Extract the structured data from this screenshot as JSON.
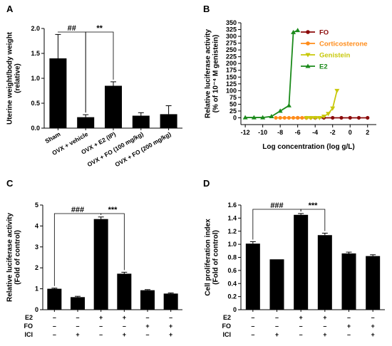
{
  "chart_data": [
    {
      "panel": "A",
      "type": "bar",
      "ylabel": "Uterine weight/body weight\n(relative)",
      "ylim": [
        0,
        2.0
      ],
      "yticks": [
        "0.0",
        "0.5",
        "1.0",
        "1.5",
        "2.0"
      ],
      "categories": [
        "Sham",
        "OVX + vehicle",
        "OVX + E2 (IP)",
        "OVX + FO (100 mg/kg)",
        "OVX + FO (200 mg/kg)"
      ],
      "values": [
        1.4,
        0.22,
        0.85,
        0.25,
        0.28
      ],
      "errors": [
        0.48,
        0.05,
        0.08,
        0.06,
        0.17
      ],
      "significance": [
        {
          "label": "##",
          "from": 0,
          "to": 1
        },
        {
          "label": "**",
          "from": 1,
          "to": 2
        }
      ]
    },
    {
      "panel": "B",
      "type": "line",
      "xlabel": "Log concentration (log g/L)",
      "ylabel": "Relative luciferase activity\n(% of 10⁻⁴ M genistein)",
      "xlim": [
        -12.5,
        3
      ],
      "ylim": [
        -25,
        350
      ],
      "xticks": [
        "-12",
        "-10",
        "-8",
        "-6",
        "-4",
        "-2",
        "0",
        "2"
      ],
      "yticks": [
        "0",
        "25",
        "50",
        "75",
        "100",
        "125",
        "150",
        "175",
        "200",
        "225",
        "250",
        "275",
        "300",
        "325",
        "350"
      ],
      "legend_position": "top-right",
      "series": [
        {
          "name": "FO",
          "color": "#8b0a0a",
          "marker": "circle",
          "x": [
            -6,
            -5,
            -4,
            -3,
            -2,
            -1,
            0,
            1,
            2
          ],
          "y": [
            0,
            0,
            0,
            0,
            0,
            0,
            0,
            0,
            0
          ]
        },
        {
          "name": "Corticosterone",
          "color": "#ff8c1a",
          "marker": "circle",
          "x": [
            -8.5,
            -8,
            -7.5,
            -7,
            -6.5,
            -6,
            -5.5,
            -5,
            -4.5
          ],
          "y": [
            0,
            0,
            0,
            0,
            0,
            0,
            0,
            0,
            0
          ]
        },
        {
          "name": "Genistein",
          "color": "#c8c80a",
          "marker": "triangle-down",
          "x": [
            -5,
            -4.5,
            -4,
            -3.5,
            -3,
            -2.5,
            -2,
            -1.5
          ],
          "y": [
            0,
            0,
            0,
            0,
            5,
            15,
            35,
            100
          ]
        },
        {
          "name": "E2",
          "color": "#1a8a1a",
          "marker": "triangle-up",
          "x": [
            -12,
            -11,
            -10,
            -9,
            -8,
            -7,
            -6.5,
            -6
          ],
          "y": [
            1,
            1,
            1,
            5,
            25,
            45,
            315,
            322
          ]
        }
      ]
    },
    {
      "panel": "C",
      "type": "bar",
      "ylabel": "Relative luciferase activity\n(Fold of control)",
      "ylim": [
        0,
        5
      ],
      "yticks": [
        "0",
        "1",
        "2",
        "3",
        "4",
        "5"
      ],
      "values": [
        1.0,
        0.6,
        4.33,
        1.72,
        0.93,
        0.77
      ],
      "errors": [
        0.03,
        0.04,
        0.1,
        0.07,
        0.03,
        0.03
      ],
      "treatments": {
        "row_labels": [
          "E2",
          "FO",
          "ICI"
        ],
        "E2": [
          "–",
          "–",
          "+",
          "+",
          "–",
          "–"
        ],
        "FO": [
          "–",
          "–",
          "–",
          "–",
          "+",
          "+"
        ],
        "ICI": [
          "–",
          "+",
          "–",
          "+",
          "–",
          "+"
        ]
      },
      "significance": [
        {
          "label": "###",
          "from": 0,
          "to": 2
        },
        {
          "label": "***",
          "from": 2,
          "to": 3
        }
      ]
    },
    {
      "panel": "D",
      "type": "bar",
      "ylabel": "Cell proliferation index\n(Fold of control)",
      "ylim": [
        0,
        1.6
      ],
      "yticks": [
        "0",
        "0.2",
        "0.4",
        "0.6",
        "0.8",
        "1.0",
        "1.2",
        "1.4",
        "1.6"
      ],
      "values": [
        1.01,
        0.77,
        1.45,
        1.14,
        0.86,
        0.82
      ],
      "errors": [
        0.03,
        0.0,
        0.02,
        0.03,
        0.02,
        0.02
      ],
      "treatments": {
        "row_labels": [
          "E2",
          "FO",
          "ICI"
        ],
        "E2": [
          "–",
          "–",
          "+",
          "+",
          "–",
          "–"
        ],
        "FO": [
          "–",
          "–",
          "–",
          "–",
          "+",
          "+"
        ],
        "ICI": [
          "–",
          "+",
          "–",
          "+",
          "–",
          "+"
        ]
      },
      "significance": [
        {
          "label": "###",
          "from": 0,
          "to": 2
        },
        {
          "label": "***",
          "from": 2,
          "to": 3
        }
      ]
    }
  ]
}
